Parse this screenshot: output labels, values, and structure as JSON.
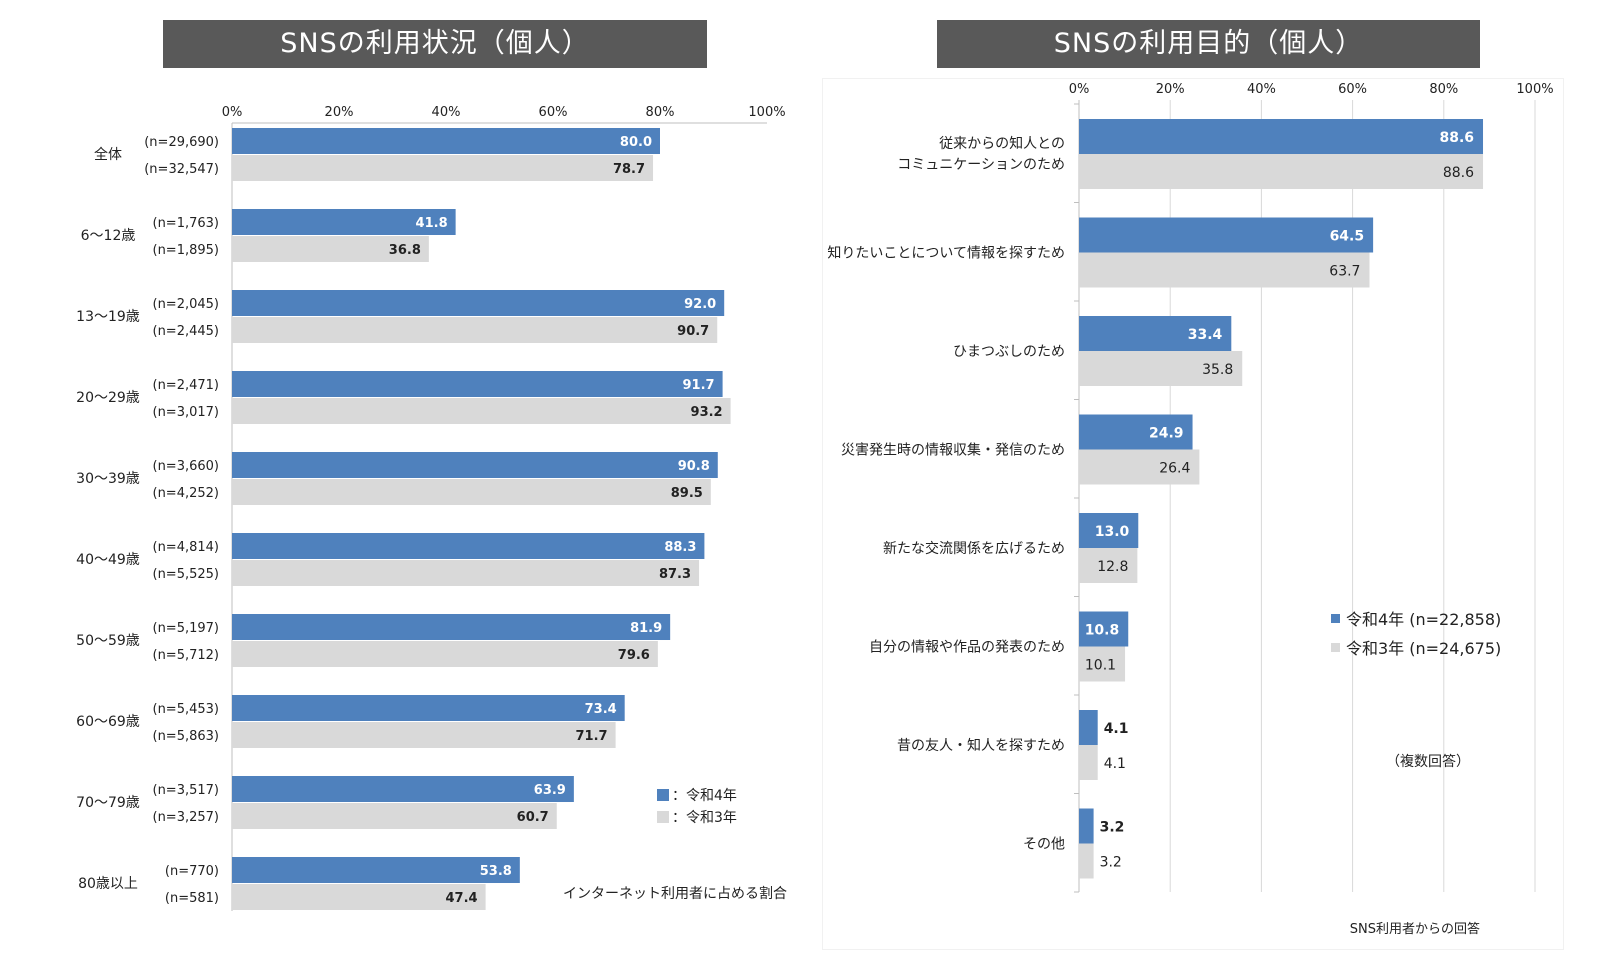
{
  "panels": [
    {
      "title": "SNSの利用状況（個人）"
    },
    {
      "title": "SNSの利用目的（個人）"
    }
  ],
  "chart_data": [
    {
      "type": "bar",
      "orientation": "horizontal",
      "title": "SNSの利用状況（個人）",
      "categories": [
        "全体",
        "6～12歳",
        "13～19歳",
        "20～29歳",
        "30～39歳",
        "40～49歳",
        "50～59歳",
        "60～69歳",
        "70～79歳",
        "80歳以上"
      ],
      "series": [
        {
          "name": "：令和4年",
          "color": "#4f81bd",
          "values": [
            80.0,
            41.8,
            92.0,
            91.7,
            90.8,
            88.3,
            81.9,
            73.4,
            63.9,
            53.8
          ],
          "value_labels": [
            "80.0",
            "41.8",
            "92.0",
            "91.7",
            "90.8",
            "88.3",
            "81.9",
            "73.4",
            "63.9",
            "53.8"
          ],
          "n_labels": [
            "(n=29,690)",
            "(n=1,763)",
            "(n=2,045)",
            "(n=2,471)",
            "(n=3,660)",
            "(n=4,814)",
            "(n=5,197)",
            "(n=5,453)",
            "(n=3,517)",
            "(n=770)"
          ]
        },
        {
          "name": "：令和3年",
          "color": "#d9d9d9",
          "values": [
            78.7,
            36.8,
            90.7,
            93.2,
            89.5,
            87.3,
            79.6,
            71.7,
            60.7,
            47.4
          ],
          "value_labels": [
            "78.7",
            "36.8",
            "90.7",
            "93.2",
            "89.5",
            "87.3",
            "79.6",
            "71.7",
            "60.7",
            "47.4"
          ],
          "n_labels": [
            "(n=32,547)",
            "(n=1,895)",
            "(n=2,445)",
            "(n=3,017)",
            "(n=4,252)",
            "(n=5,525)",
            "(n=5,712)",
            "(n=5,863)",
            "(n=3,257)",
            "(n=581)"
          ]
        }
      ],
      "xlim": [
        0,
        100
      ],
      "xticks": [
        "0%",
        "20%",
        "40%",
        "60%",
        "80%",
        "100%"
      ],
      "grid": false,
      "legend": "bottom-right",
      "note": "インターネット利用者に占める割合"
    },
    {
      "type": "bar",
      "orientation": "horizontal",
      "title": "SNSの利用目的（個人）",
      "categories": [
        [
          "従来からの知人との",
          "コミュニケーションのため"
        ],
        [
          "知りたいことについて情報を探すため"
        ],
        [
          "ひまつぶしのため"
        ],
        [
          "災害発生時の情報収集・発信のため"
        ],
        [
          "新たな交流関係を広げるため"
        ],
        [
          "自分の情報や作品の発表のため"
        ],
        [
          "昔の友人・知人を探すため"
        ],
        [
          "その他"
        ]
      ],
      "series": [
        {
          "name": "令和4年 (n=22,858)",
          "color": "#4f81bd",
          "values": [
            88.6,
            64.5,
            33.4,
            24.9,
            13.0,
            10.8,
            4.1,
            3.2
          ],
          "value_labels": [
            "88.6",
            "64.5",
            "33.4",
            "24.9",
            "13.0",
            "10.8",
            "4.1",
            "3.2"
          ]
        },
        {
          "name": "令和3年 (n=24,675)",
          "color": "#d9d9d9",
          "values": [
            88.6,
            63.7,
            35.8,
            26.4,
            12.8,
            10.1,
            4.1,
            3.2
          ],
          "value_labels": [
            "88.6",
            "63.7",
            "35.8",
            "26.4",
            "12.8",
            "10.1",
            "4.1",
            "3.2"
          ]
        }
      ],
      "xlim": [
        0,
        100
      ],
      "xticks": [
        "0%",
        "20%",
        "40%",
        "60%",
        "80%",
        "100%"
      ],
      "grid": true,
      "legend": "right",
      "note": "（複数回答）",
      "footnote": "SNS利用者からの回答"
    }
  ]
}
